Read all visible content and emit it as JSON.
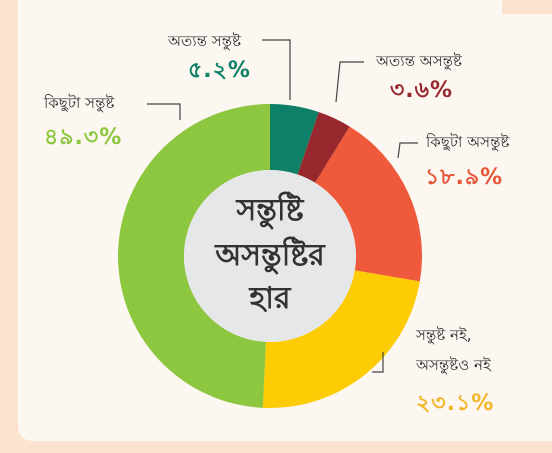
{
  "chart_data": {
    "type": "donut",
    "title_lines": [
      "সন্তুষ্টি",
      "অসন্তুষ্টির",
      "হার"
    ],
    "slices": [
      {
        "label": "অত্যন্ত সন্তুষ্ট",
        "value": 5.2,
        "value_text": "৫.২%",
        "color": "#0f8068",
        "label_color": "#0f8068"
      },
      {
        "label": "অত্যন্ত অসন্তুষ্ট",
        "value": 3.6,
        "value_text": "৩.৬%",
        "color": "#96282e",
        "label_color": "#96282e"
      },
      {
        "label": "কিছুটা অসন্তুষ্ট",
        "value": 18.9,
        "value_text": "১৮.৯%",
        "color": "#ef5a3c",
        "label_color": "#e55538"
      },
      {
        "label": "সন্তুষ্ট নই, অসন্তুষ্টও নই",
        "value": 23.1,
        "value_text": "২৩.১%",
        "color": "#fdcc05",
        "label_color": "#f2b52a"
      },
      {
        "label": "কিছুটা সন্তুষ্ট",
        "value": 49.3,
        "value_text": "৪৯.৩%",
        "color": "#8dc63f",
        "label_color": "#8dc63f"
      }
    ]
  }
}
